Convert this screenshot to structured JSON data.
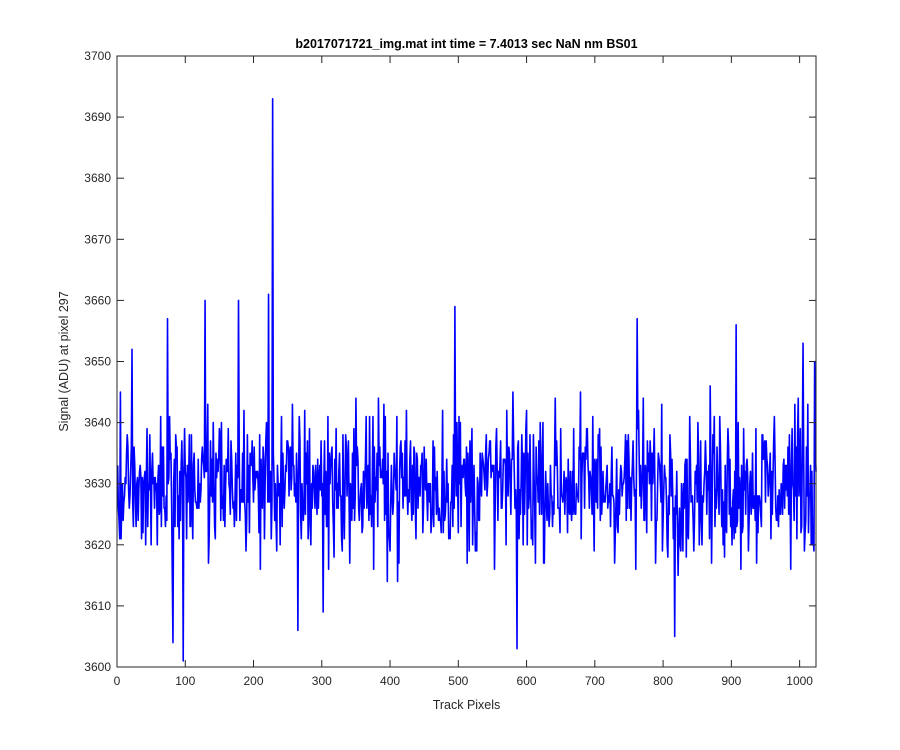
{
  "chart_data": {
    "type": "line",
    "title": "b2017071721_img.mat int time = 7.4013 sec  NaN nm BS01",
    "xlabel": "Track Pixels",
    "ylabel": "Signal (ADU) at pixel 297",
    "xlim": [
      0,
      1024
    ],
    "ylim": [
      3600,
      3700
    ],
    "xticks": [
      "0",
      "100",
      "200",
      "300",
      "400",
      "500",
      "600",
      "700",
      "800",
      "900",
      "1000"
    ],
    "yticks": [
      "3600",
      "3610",
      "3620",
      "3630",
      "3640",
      "3650",
      "3660",
      "3670",
      "3680",
      "3690",
      "3700"
    ],
    "grid": false,
    "line_color": "#0000ff",
    "series": [
      {
        "name": "",
        "x_start": 1,
        "x_step": 1,
        "count": 1024,
        "y_mean": 3630,
        "y_noise_range": [
          3612,
          3648
        ],
        "notable_points": [
          {
            "x": 5,
            "y": 3645
          },
          {
            "x": 22,
            "y": 3652
          },
          {
            "x": 74,
            "y": 3657
          },
          {
            "x": 82,
            "y": 3604
          },
          {
            "x": 97,
            "y": 3601
          },
          {
            "x": 129,
            "y": 3660
          },
          {
            "x": 178,
            "y": 3660
          },
          {
            "x": 222,
            "y": 3661
          },
          {
            "x": 228,
            "y": 3693
          },
          {
            "x": 265,
            "y": 3606
          },
          {
            "x": 302,
            "y": 3609
          },
          {
            "x": 495,
            "y": 3659
          },
          {
            "x": 586,
            "y": 3603
          },
          {
            "x": 762,
            "y": 3657
          },
          {
            "x": 817,
            "y": 3605
          },
          {
            "x": 907,
            "y": 3656
          },
          {
            "x": 1005,
            "y": 3653
          },
          {
            "x": 1022,
            "y": 3650
          }
        ]
      }
    ]
  }
}
